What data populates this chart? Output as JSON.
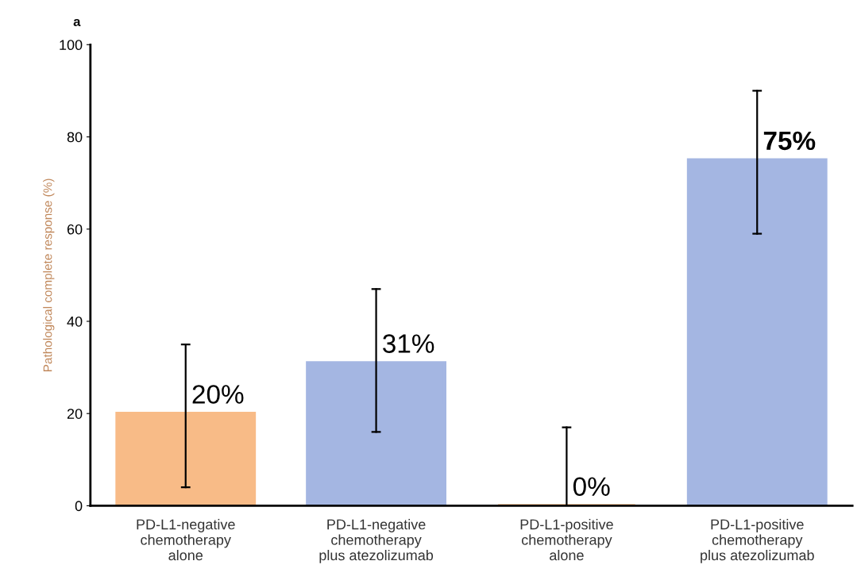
{
  "chart_data": {
    "type": "bar",
    "title": "a",
    "ylabel": "Pathological complete response (%)",
    "categories": [
      "PD-L1-negative\nchemotherapy\nalone",
      "PD-L1-negative\nchemotherapy\nplus atezolizumab",
      "PD-L1-positive\nchemotherapy\nalone",
      "PD-L1-positive\nchemotherapy\nplus atezolizumab"
    ],
    "values": [
      20,
      31,
      0,
      75
    ],
    "value_labels": [
      "20%",
      "31%",
      "0%",
      "75%"
    ],
    "errors": [
      [
        4,
        35
      ],
      [
        16,
        47
      ],
      [
        0,
        17
      ],
      [
        59,
        90
      ]
    ],
    "colors": [
      "#f8bb87",
      "#a4b6e2",
      "#f8bb87",
      "#a4b6e2"
    ],
    "ylim": [
      0,
      100
    ],
    "yticks": [
      0,
      20,
      40,
      60,
      80,
      100
    ],
    "grid": false,
    "legend": false
  }
}
